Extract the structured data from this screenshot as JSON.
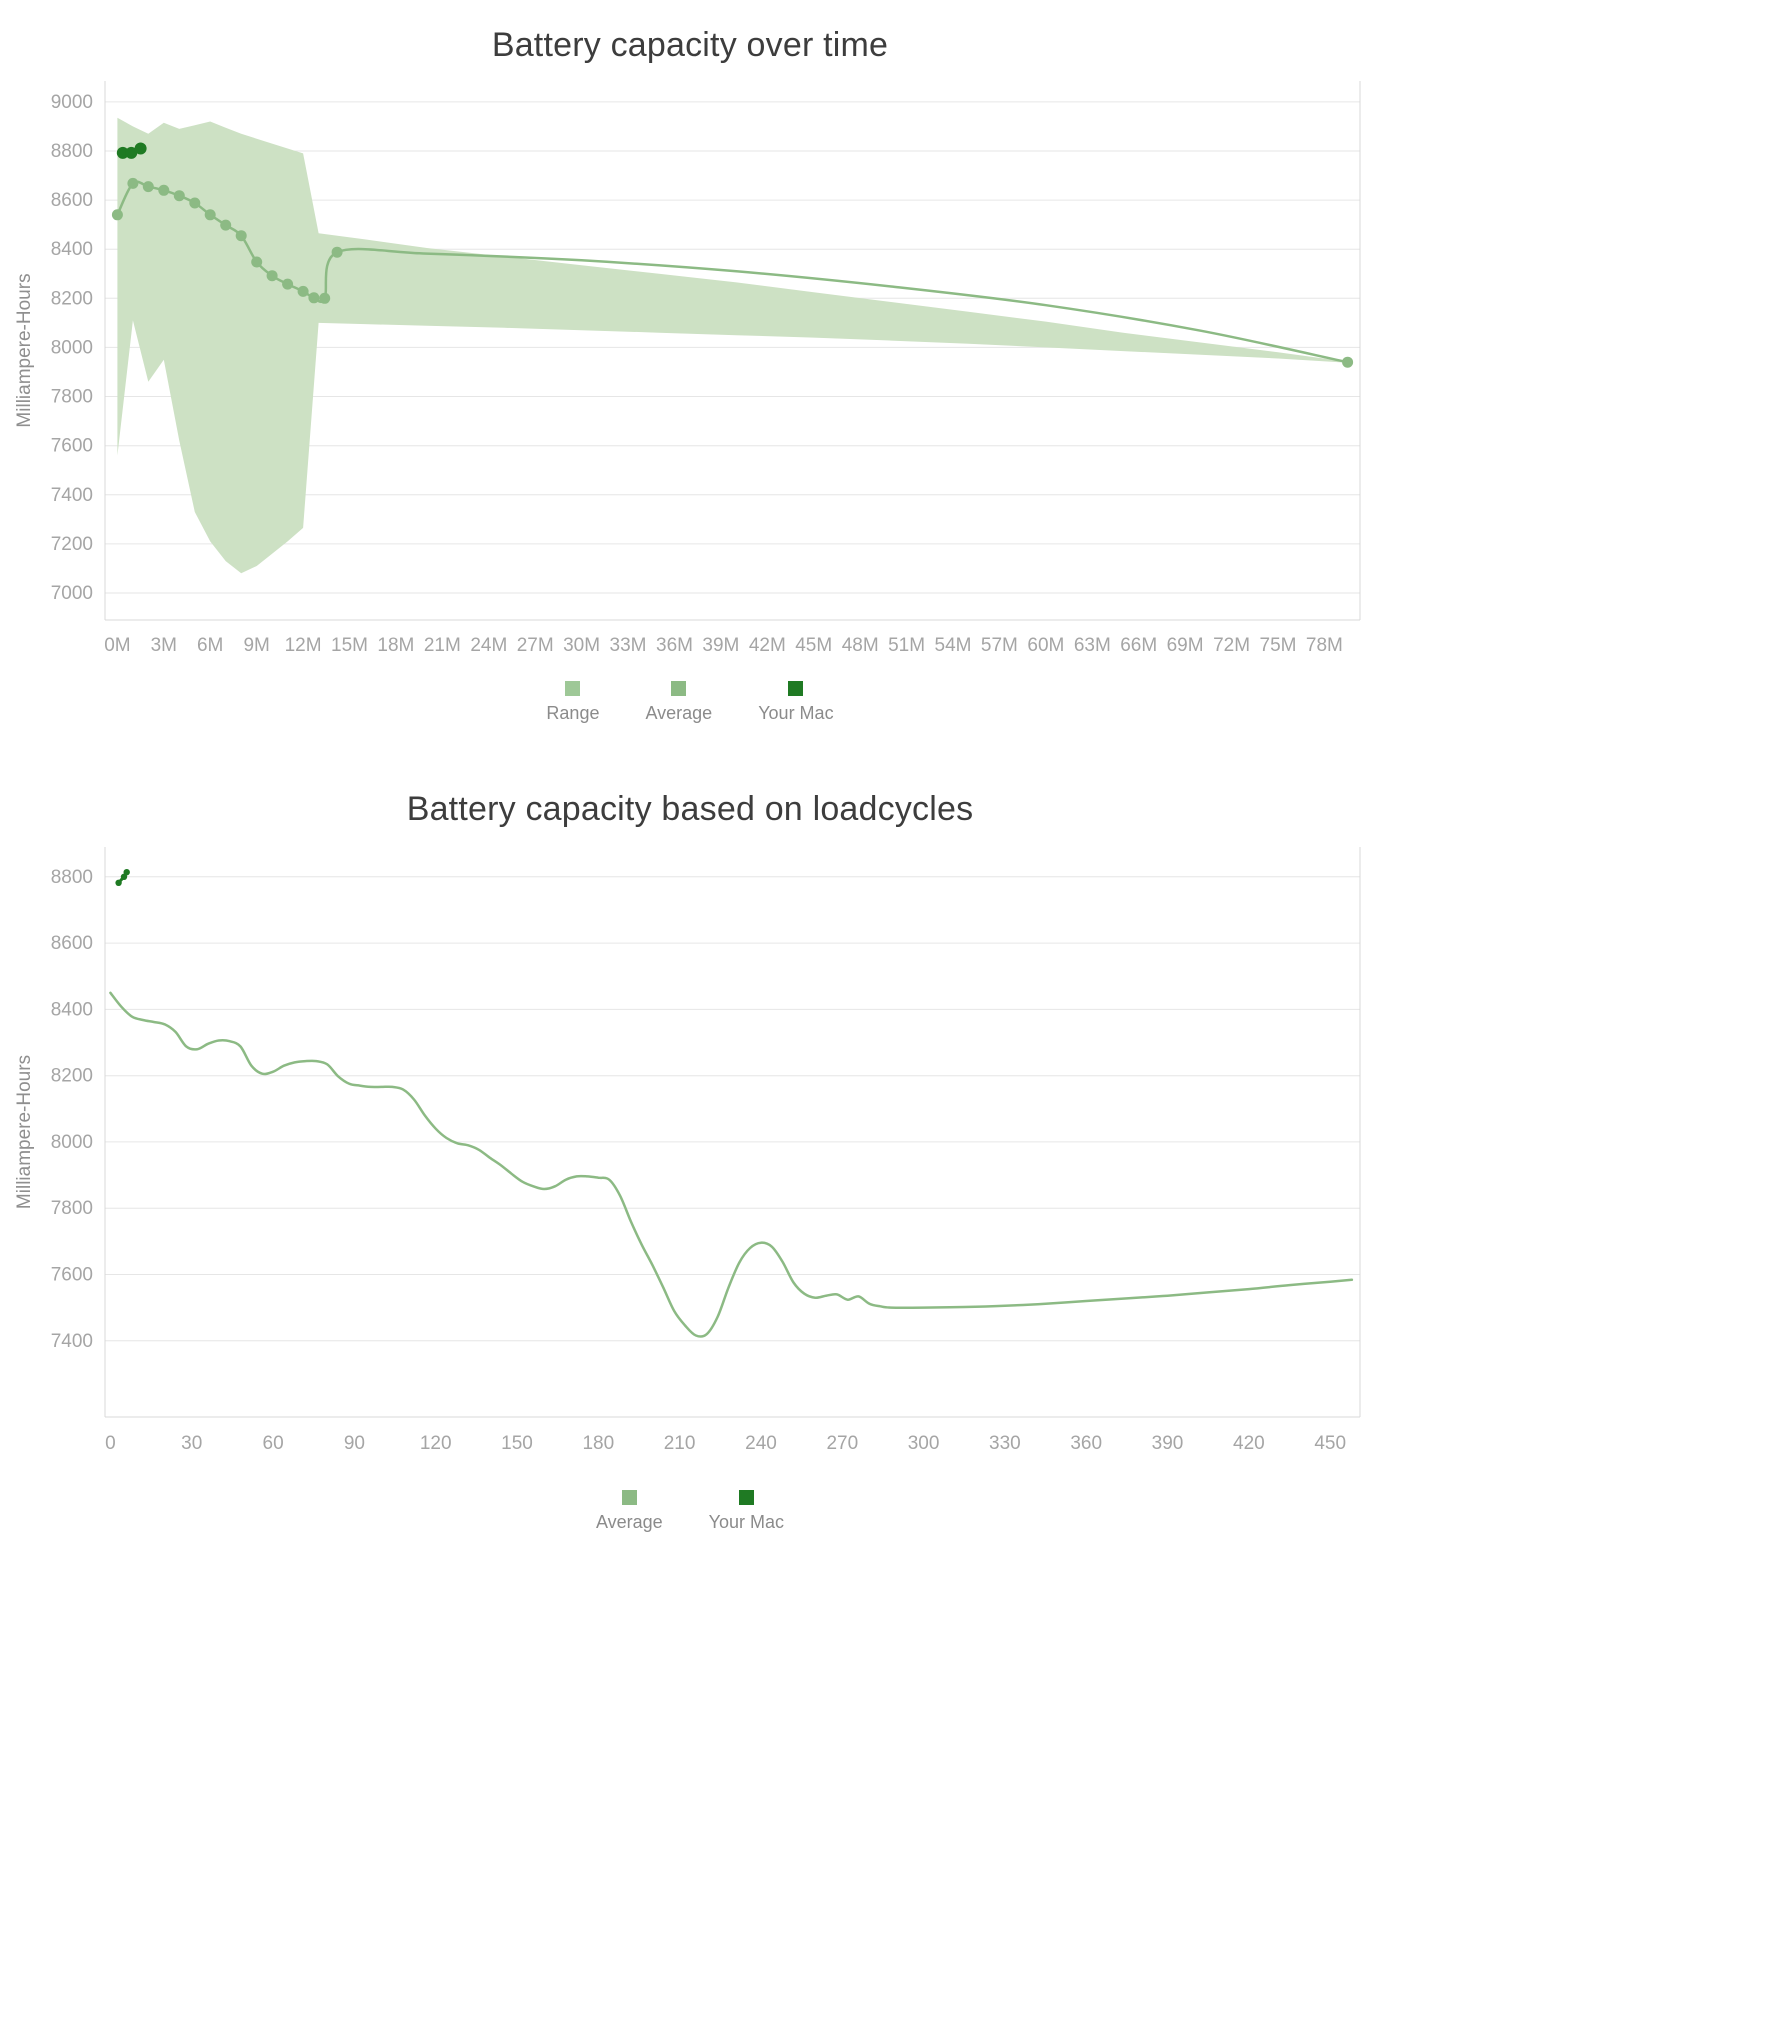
{
  "colors": {
    "background": "#ffffff",
    "grid": "#e6e6e6",
    "axis_border": "#d8d8d8",
    "tick_label": "#a5a5a5",
    "axis_title": "#8f8f8f",
    "chart_title": "#3d3d3d",
    "legend_label": "#8b8b8b",
    "range_fill": "#cde1c4",
    "average_line": "#8cba84",
    "your_mac": "#1f7a23"
  },
  "chart_data": [
    {
      "type": "line",
      "title": "Battery capacity over time",
      "xlabel": "",
      "ylabel": "Milliampere-Hours",
      "x_unit": "months",
      "xlim": [
        -0.8,
        80.3
      ],
      "ylim": [
        6890,
        9085
      ],
      "grid": "horizontal",
      "legend_position": "bottom",
      "x_ticks": [
        0,
        3,
        6,
        9,
        12,
        15,
        18,
        21,
        24,
        27,
        30,
        33,
        36,
        39,
        42,
        45,
        48,
        51,
        54,
        57,
        60,
        63,
        66,
        69,
        72,
        75,
        78
      ],
      "x_tick_labels": [
        "0M",
        "3M",
        "6M",
        "9M",
        "12M",
        "15M",
        "18M",
        "21M",
        "24M",
        "27M",
        "30M",
        "33M",
        "36M",
        "39M",
        "42M",
        "45M",
        "48M",
        "51M",
        "54M",
        "57M",
        "60M",
        "63M",
        "66M",
        "69M",
        "72M",
        "75M",
        "78M"
      ],
      "y_ticks": [
        7000,
        7200,
        7400,
        7600,
        7800,
        8000,
        8200,
        8400,
        8600,
        8800,
        9000
      ],
      "legend": [
        {
          "label": "Range",
          "color": "#9ec897"
        },
        {
          "label": "Average",
          "color": "#8cba84"
        },
        {
          "label": "Your Mac",
          "color": "#1f7a23"
        }
      ],
      "series": [
        {
          "name": "Range",
          "type": "band",
          "fill": "#cde1c4",
          "upper": [
            [
              0,
              8935
            ],
            [
              1,
              8900
            ],
            [
              2,
              8870
            ],
            [
              3,
              8915
            ],
            [
              4,
              8890
            ],
            [
              5,
              8905
            ],
            [
              6,
              8920
            ],
            [
              7,
              8895
            ],
            [
              8,
              8870
            ],
            [
              9,
              8850
            ],
            [
              10,
              8830
            ],
            [
              11,
              8810
            ],
            [
              12,
              8790
            ],
            [
              13,
              8465
            ],
            [
              16,
              8440
            ],
            [
              20,
              8405
            ],
            [
              25,
              8370
            ],
            [
              30,
              8335
            ],
            [
              35,
              8300
            ],
            [
              40,
              8265
            ],
            [
              45,
              8225
            ],
            [
              50,
              8185
            ],
            [
              55,
              8145
            ],
            [
              60,
              8105
            ],
            [
              65,
              8060
            ],
            [
              70,
              8020
            ],
            [
              75,
              7980
            ],
            [
              79.5,
              7942
            ]
          ],
          "lower": [
            [
              0,
              7560
            ],
            [
              1,
              8110
            ],
            [
              2,
              7860
            ],
            [
              3,
              7950
            ],
            [
              4,
              7620
            ],
            [
              5,
              7330
            ],
            [
              6,
              7210
            ],
            [
              7,
              7130
            ],
            [
              8,
              7080
            ],
            [
              9,
              7110
            ],
            [
              10,
              7160
            ],
            [
              11,
              7210
            ],
            [
              12,
              7265
            ],
            [
              13,
              8100
            ],
            [
              16,
              8095
            ],
            [
              20,
              8088
            ],
            [
              25,
              8080
            ],
            [
              30,
              8070
            ],
            [
              35,
              8060
            ],
            [
              40,
              8050
            ],
            [
              45,
              8040
            ],
            [
              50,
              8028
            ],
            [
              55,
              8015
            ],
            [
              60,
              8000
            ],
            [
              65,
              7985
            ],
            [
              70,
              7970
            ],
            [
              75,
              7955
            ],
            [
              79.5,
              7938
            ]
          ]
        },
        {
          "name": "Average",
          "type": "line",
          "color": "#8cba84",
          "width": 2.5,
          "smooth": true,
          "points": [
            [
              0,
              8540
            ],
            [
              1,
              8668
            ],
            [
              2,
              8655
            ],
            [
              3,
              8640
            ],
            [
              4,
              8618
            ],
            [
              5,
              8588
            ],
            [
              6,
              8540
            ],
            [
              7,
              8498
            ],
            [
              8,
              8455
            ],
            [
              9,
              8348
            ],
            [
              10,
              8292
            ],
            [
              11,
              8258
            ],
            [
              12,
              8228
            ],
            [
              12.7,
              8202
            ],
            [
              13.4,
              8200
            ],
            [
              14.2,
              8388
            ],
            [
              20,
              8382
            ],
            [
              30,
              8355
            ],
            [
              40,
              8310
            ],
            [
              50,
              8248
            ],
            [
              60,
              8172
            ],
            [
              70,
              8068
            ],
            [
              79.5,
              7940
            ]
          ],
          "markers": {
            "until_x": 15,
            "last": true,
            "radius": 5.5
          }
        },
        {
          "name": "Your Mac",
          "type": "line",
          "color": "#1f7a23",
          "width": 3,
          "smooth": false,
          "points": [
            [
              0.35,
              8792
            ],
            [
              0.9,
              8792
            ],
            [
              1.5,
              8810
            ]
          ],
          "markers": {
            "all": true,
            "radius": 6
          }
        }
      ]
    },
    {
      "type": "line",
      "title": "Battery capacity based on loadcycles",
      "xlabel": "",
      "ylabel": "Milliampere-Hours",
      "x_unit": "loadcycles",
      "xlim": [
        -2,
        461
      ],
      "ylim": [
        7170,
        8890
      ],
      "grid": "horizontal",
      "legend_position": "bottom",
      "x_ticks": [
        0,
        30,
        60,
        90,
        120,
        150,
        180,
        210,
        240,
        270,
        300,
        330,
        360,
        390,
        420,
        450
      ],
      "x_tick_labels": [
        "0",
        "30",
        "60",
        "90",
        "120",
        "150",
        "180",
        "210",
        "240",
        "270",
        "300",
        "330",
        "360",
        "390",
        "420",
        "450"
      ],
      "y_ticks": [
        7400,
        7600,
        7800,
        8000,
        8200,
        8400,
        8600,
        8800
      ],
      "legend": [
        {
          "label": "Average",
          "color": "#8cba84"
        },
        {
          "label": "Your Mac",
          "color": "#1f7a23"
        }
      ],
      "series": [
        {
          "name": "Average",
          "type": "line",
          "color": "#8cba84",
          "width": 2.5,
          "smooth": true,
          "points": [
            [
              0,
              8450
            ],
            [
              4,
              8408
            ],
            [
              8,
              8378
            ],
            [
              12,
              8368
            ],
            [
              16,
              8362
            ],
            [
              20,
              8355
            ],
            [
              24,
              8332
            ],
            [
              28,
              8288
            ],
            [
              32,
              8280
            ],
            [
              36,
              8296
            ],
            [
              40,
              8306
            ],
            [
              44,
              8304
            ],
            [
              48,
              8288
            ],
            [
              52,
              8230
            ],
            [
              56,
              8206
            ],
            [
              60,
              8212
            ],
            [
              64,
              8230
            ],
            [
              68,
              8240
            ],
            [
              72,
              8244
            ],
            [
              76,
              8244
            ],
            [
              80,
              8234
            ],
            [
              84,
              8198
            ],
            [
              88,
              8176
            ],
            [
              92,
              8170
            ],
            [
              96,
              8166
            ],
            [
              100,
              8166
            ],
            [
              104,
              8166
            ],
            [
              108,
              8158
            ],
            [
              112,
              8128
            ],
            [
              116,
              8080
            ],
            [
              120,
              8040
            ],
            [
              124,
              8012
            ],
            [
              128,
              7996
            ],
            [
              132,
              7990
            ],
            [
              136,
              7976
            ],
            [
              140,
              7952
            ],
            [
              144,
              7930
            ],
            [
              148,
              7904
            ],
            [
              152,
              7880
            ],
            [
              156,
              7866
            ],
            [
              160,
              7858
            ],
            [
              164,
              7866
            ],
            [
              168,
              7886
            ],
            [
              172,
              7896
            ],
            [
              176,
              7896
            ],
            [
              180,
              7892
            ],
            [
              184,
              7886
            ],
            [
              188,
              7838
            ],
            [
              192,
              7760
            ],
            [
              196,
              7690
            ],
            [
              200,
              7628
            ],
            [
              204,
              7560
            ],
            [
              208,
              7490
            ],
            [
              212,
              7446
            ],
            [
              216,
              7416
            ],
            [
              220,
              7420
            ],
            [
              224,
              7472
            ],
            [
              228,
              7560
            ],
            [
              232,
              7636
            ],
            [
              236,
              7680
            ],
            [
              240,
              7696
            ],
            [
              244,
              7684
            ],
            [
              248,
              7638
            ],
            [
              252,
              7576
            ],
            [
              256,
              7542
            ],
            [
              260,
              7530
            ],
            [
              264,
              7536
            ],
            [
              268,
              7540
            ],
            [
              272,
              7524
            ],
            [
              276,
              7534
            ],
            [
              280,
              7512
            ],
            [
              284,
              7504
            ],
            [
              288,
              7500
            ],
            [
              300,
              7500
            ],
            [
              315,
              7502
            ],
            [
              330,
              7506
            ],
            [
              345,
              7512
            ],
            [
              360,
              7520
            ],
            [
              375,
              7528
            ],
            [
              390,
              7536
            ],
            [
              405,
              7546
            ],
            [
              420,
              7556
            ],
            [
              435,
              7568
            ],
            [
              450,
              7578
            ],
            [
              458,
              7584
            ]
          ]
        },
        {
          "name": "Your Mac",
          "type": "line",
          "color": "#1f7a23",
          "width": 3,
          "smooth": false,
          "points": [
            [
              3,
              8782
            ],
            [
              5,
              8800
            ],
            [
              6,
              8814
            ]
          ],
          "markers": {
            "all": true,
            "radius": 3.2
          }
        }
      ]
    }
  ]
}
